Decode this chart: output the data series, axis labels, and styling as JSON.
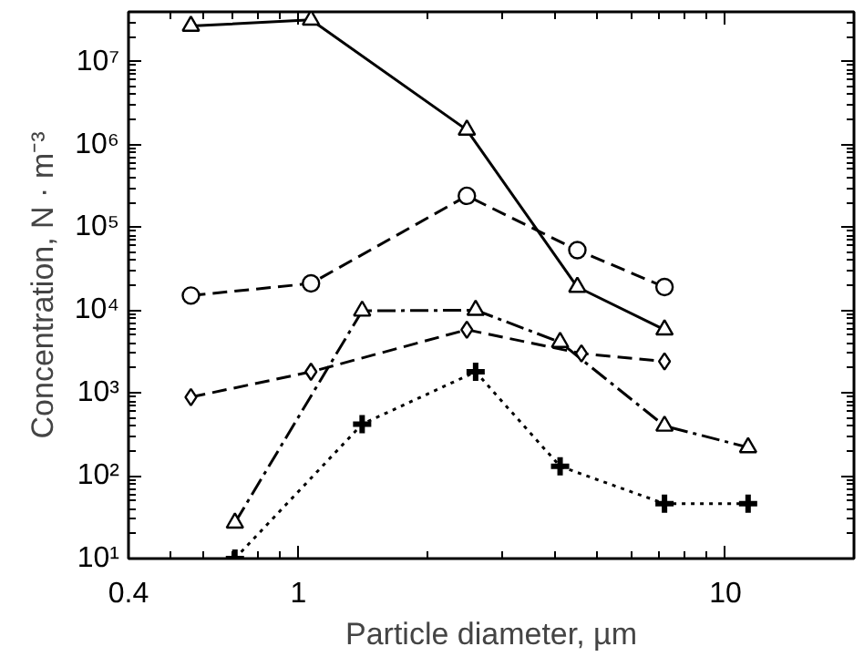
{
  "chart_data": {
    "type": "line",
    "xlabel": "Particle diameter, µm",
    "ylabel": "Concentration, N · m⁻³",
    "log": "xy",
    "grid": false,
    "xlim": [
      0.4,
      20
    ],
    "ylim": [
      10,
      40000000
    ],
    "xticks": [
      0.4,
      1,
      10
    ],
    "yticks": [
      {
        "value": 10,
        "label": "10¹"
      },
      {
        "value": 100,
        "label": "10²"
      },
      {
        "value": 1000,
        "label": "10³"
      },
      {
        "value": 10000,
        "label": "10⁴"
      },
      {
        "value": 100000,
        "label": "10⁵"
      },
      {
        "value": 1000000,
        "label": "10⁶"
      },
      {
        "value": 10000000,
        "label": "10⁷"
      }
    ],
    "series": [
      {
        "color": "#000000",
        "marker": "triangle",
        "line_style": "solid",
        "x": [
          0.56,
          1.07,
          2.48,
          4.5,
          7.2
        ],
        "values": [
          27000000,
          32000000,
          1500000,
          19000,
          5800
        ]
      },
      {
        "color": "#000000",
        "marker": "circle",
        "line_style": "dashed",
        "x": [
          0.56,
          1.07,
          2.48,
          4.5,
          7.2
        ],
        "values": [
          15000,
          21000,
          240000,
          53000,
          19000
        ]
      },
      {
        "color": "#000000",
        "marker": "triangle",
        "line_style": "dashdot",
        "x": [
          0.71,
          1.41,
          2.6,
          4.1,
          7.2,
          11.3
        ],
        "values": [
          27,
          9800,
          10000,
          4100,
          400,
          220
        ]
      },
      {
        "color": "#000000",
        "marker": "diamond",
        "line_style": "dashed",
        "x": [
          0.56,
          1.07,
          2.48,
          4.6,
          7.2
        ],
        "values": [
          890,
          1800,
          5800,
          3000,
          2400
        ]
      },
      {
        "color": "#000000",
        "marker": "cross",
        "line_style": "dotted",
        "x": [
          0.71,
          1.41,
          2.6,
          4.1,
          7.2,
          11.3
        ],
        "values": [
          10,
          420,
          1800,
          130,
          46,
          46
        ]
      }
    ]
  }
}
